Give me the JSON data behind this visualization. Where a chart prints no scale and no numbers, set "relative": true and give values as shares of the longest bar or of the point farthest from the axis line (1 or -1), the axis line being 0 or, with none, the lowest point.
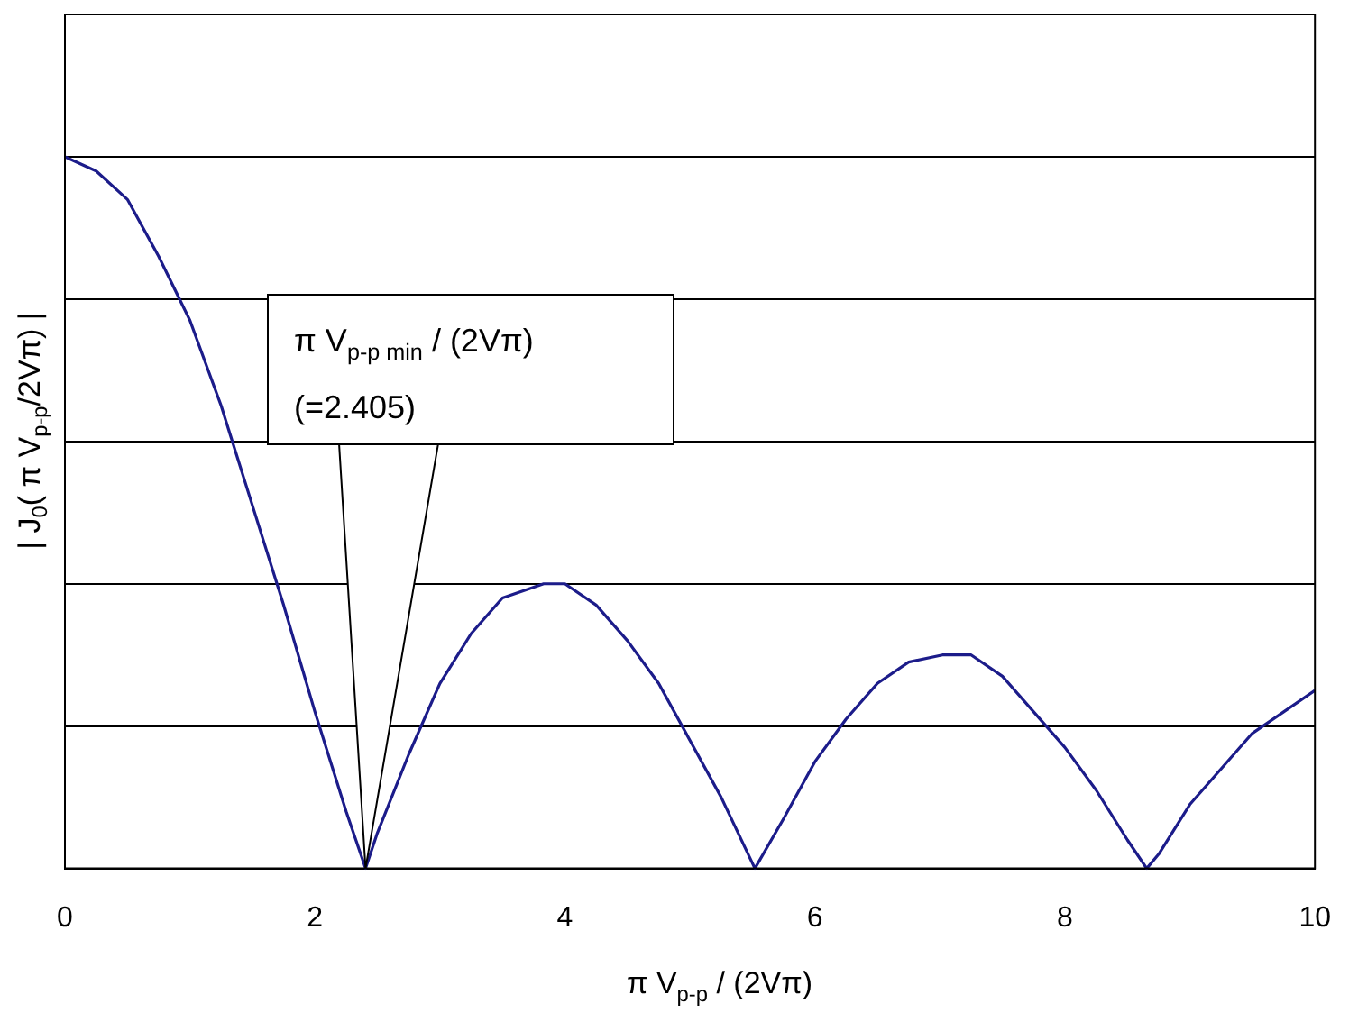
{
  "chart_data": {
    "type": "line",
    "relative": true,
    "xlabel": "π V$_{p-p}$ / (2Vπ)",
    "ylabel": "| J$_{0}$( π V$_{p-p}$/2Vπ) |",
    "x": [
      0,
      0.25,
      0.5,
      0.75,
      1,
      1.25,
      1.5,
      1.75,
      2,
      2.25,
      2.405,
      2.5,
      2.75,
      3,
      3.25,
      3.5,
      3.83,
      4,
      4.25,
      4.5,
      4.75,
      5,
      5.25,
      5.52,
      5.75,
      6,
      6.25,
      6.5,
      6.75,
      7.02,
      7.25,
      7.5,
      7.75,
      8,
      8.25,
      8.5,
      8.654,
      8.75,
      9,
      9.25,
      9.5,
      9.75,
      10
    ],
    "series": [
      {
        "color": "#1c1c8a",
        "values": [
          1,
          0.98,
          0.94,
          0.86,
          0.77,
          0.65,
          0.51,
          0.37,
          0.22,
          0.08,
          0,
          0.05,
          0.16,
          0.26,
          0.33,
          0.38,
          0.4,
          0.4,
          0.37,
          0.32,
          0.26,
          0.18,
          0.1,
          0,
          0.07,
          0.15,
          0.21,
          0.26,
          0.29,
          0.3,
          0.3,
          0.27,
          0.22,
          0.17,
          0.11,
          0.04,
          0,
          0.02,
          0.09,
          0.14,
          0.19,
          0.22,
          0.25
        ]
      }
    ],
    "xlim": [
      0,
      10
    ],
    "xticks": [
      0,
      2,
      4,
      6,
      8,
      10
    ],
    "grid": "y",
    "legend": false,
    "marker": "none",
    "line_style": "solid",
    "annotations": [
      {
        "text": "π V$_{p-p min}$ / (2Vπ)\n(=2.405)",
        "x": 2.405,
        "y": 0
      }
    ]
  }
}
